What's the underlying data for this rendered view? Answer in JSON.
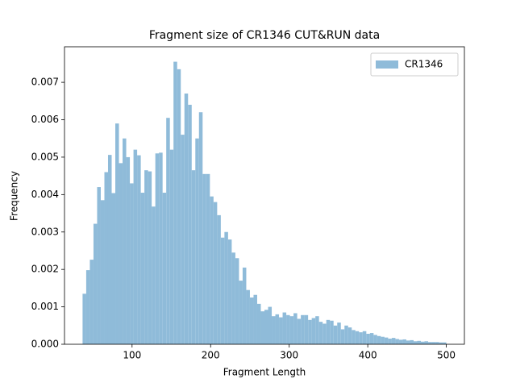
{
  "chart_data": {
    "type": "histogram",
    "title": "Fragment size of CR1346 CUT&RUN data",
    "x_label": "Fragment Length",
    "y_label": "Frequency",
    "series": [
      {
        "name": "CR1346",
        "color": "#8fbbd9",
        "bins": [
          37,
          41.63,
          46.26,
          50.89,
          55.52,
          60.15,
          64.78,
          69.41,
          74.04,
          78.67,
          83.3,
          87.93,
          92.56,
          97.19,
          101.82,
          106.45,
          111.08,
          115.71,
          120.34,
          124.97,
          129.6,
          134.23,
          138.86,
          143.49,
          148.12,
          152.75,
          157.38,
          162.01,
          166.64,
          171.27,
          175.9,
          180.53,
          185.16,
          189.79,
          194.42,
          199.05,
          203.68,
          208.31,
          212.94,
          217.57,
          222.2,
          226.83,
          231.46,
          236.09,
          240.72,
          245.35,
          249.98,
          254.61,
          259.24,
          263.87,
          268.5,
          273.13,
          277.76,
          282.39,
          287.02,
          291.65,
          296.28,
          300.91,
          305.54,
          310.17,
          314.8,
          319.43,
          324.06,
          328.69,
          333.32,
          337.95,
          342.58,
          347.21,
          351.84,
          356.47,
          361.1,
          365.73,
          370.36,
          374.99,
          379.62,
          384.25,
          388.88,
          393.51,
          398.14,
          402.77,
          407.4,
          412.03,
          416.66,
          421.29,
          425.92,
          430.55,
          435.18,
          439.81,
          444.44,
          449.07,
          453.7,
          458.33,
          462.96,
          467.59,
          472.22,
          476.85,
          481.48,
          486.11,
          490.74,
          495.37,
          500
        ],
        "counts": [
          0.00135,
          0.00198,
          0.00226,
          0.00322,
          0.0042,
          0.00385,
          0.0046,
          0.00506,
          0.00404,
          0.0059,
          0.00484,
          0.0055,
          0.005,
          0.0043,
          0.0052,
          0.00505,
          0.00405,
          0.00465,
          0.00462,
          0.00368,
          0.0051,
          0.00512,
          0.00405,
          0.00605,
          0.0052,
          0.00755,
          0.00735,
          0.0056,
          0.0067,
          0.0064,
          0.00465,
          0.0055,
          0.0062,
          0.00455,
          0.00455,
          0.00395,
          0.0038,
          0.00345,
          0.00285,
          0.003,
          0.0028,
          0.00245,
          0.0023,
          0.0017,
          0.00205,
          0.00145,
          0.00125,
          0.00132,
          0.00108,
          0.00088,
          0.00092,
          0.001,
          0.00075,
          0.0008,
          0.00072,
          0.00085,
          0.00078,
          0.00075,
          0.00083,
          0.00068,
          0.00078,
          0.00078,
          0.00065,
          0.0007,
          0.00075,
          0.0006,
          0.00055,
          0.00065,
          0.00063,
          0.0005,
          0.00058,
          0.0004,
          0.0005,
          0.00045,
          0.00038,
          0.00035,
          0.00032,
          0.00035,
          0.00028,
          0.0003,
          0.00025,
          0.00022,
          0.0002,
          0.00018,
          0.00015,
          0.00017,
          0.00014,
          0.00012,
          0.00013,
          0.0001,
          0.00011,
          8e-05,
          9e-05,
          7e-05,
          8e-05,
          6e-05,
          6e-05,
          6e-05,
          5e-05,
          5e-05
        ]
      }
    ],
    "xlim": [
      14,
      523
    ],
    "xticks": [
      100,
      200,
      300,
      400,
      500
    ],
    "ylim": [
      0,
      0.00795
    ],
    "yticks": [
      {
        "value": 0,
        "label": "0.000"
      },
      0.001,
      0.002,
      0.003,
      0.004,
      0.005,
      0.006,
      0.007
    ],
    "legend": "upper right",
    "grid": false
  }
}
